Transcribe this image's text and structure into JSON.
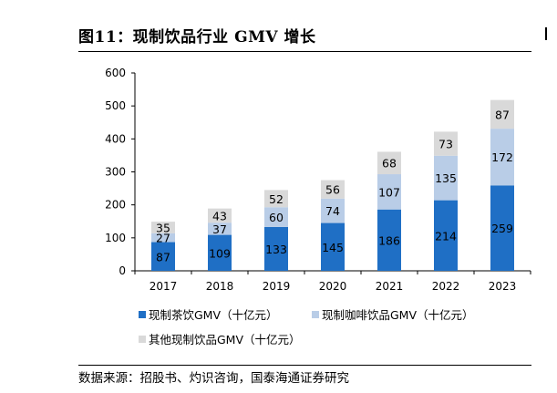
{
  "page": {
    "title": "图11：现制饮品行业 GMV 增长",
    "source": "数据来源：招股书、灼识咨询，国泰海通证券研究"
  },
  "colors": {
    "tea": "#1f6fc5",
    "coffee": "#b9cde7",
    "other": "#d9d9d9",
    "axis": "#000000"
  },
  "chart_data": {
    "type": "bar",
    "stacked": true,
    "title": "现制饮品行业 GMV 增长",
    "categories": [
      "2017",
      "2018",
      "2019",
      "2020",
      "2021",
      "2022",
      "2023"
    ],
    "series": [
      {
        "name": "现制茶饮GMV（十亿元）",
        "color": "#1f6fc5",
        "label_color": "#000000",
        "values": [
          87,
          109,
          133,
          145,
          186,
          214,
          259
        ]
      },
      {
        "name": "现制咖啡饮品GMV（十亿元）",
        "color": "#b9cde7",
        "label_color": "#000000",
        "values": [
          27,
          37,
          60,
          74,
          107,
          135,
          172
        ]
      },
      {
        "name": "其他现制饮品GMV（十亿元）",
        "color": "#d9d9d9",
        "label_color": "#000000",
        "values": [
          35,
          43,
          52,
          56,
          68,
          73,
          87
        ]
      }
    ],
    "ylim": [
      0,
      600
    ],
    "yticks": [
      0,
      100,
      200,
      300,
      400,
      500,
      600
    ],
    "xlabel": "",
    "ylabel": "",
    "grid": false,
    "legend": "bottom"
  }
}
